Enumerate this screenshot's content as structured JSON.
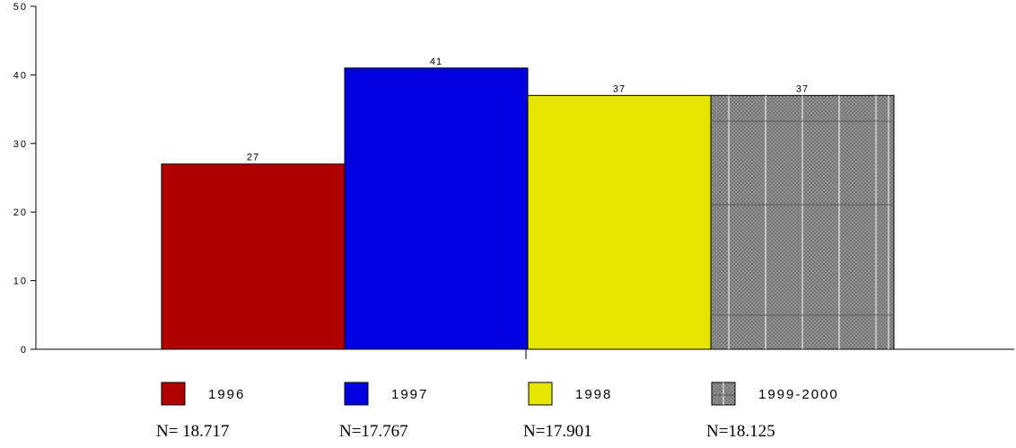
{
  "chart_data": {
    "type": "bar",
    "title": "",
    "xlabel": "",
    "ylabel": "",
    "ylim": [
      0,
      50
    ],
    "yticks": [
      "0",
      "10",
      "20",
      "30",
      "40",
      "50"
    ],
    "grid": false,
    "legend_position": "bottom",
    "categories": [
      "1996",
      "1997",
      "1998",
      "1999-2000"
    ],
    "values": [
      27,
      41,
      37,
      37
    ],
    "data_labels": [
      "27",
      "41",
      "37",
      "37"
    ],
    "colors": [
      "#b00000",
      "#0000e0",
      "#e5e500",
      "#8c8c8c"
    ],
    "sample_sizes": [
      "N= 18.717",
      "N=17.767",
      "N=17.901",
      "N=18.125"
    ]
  }
}
